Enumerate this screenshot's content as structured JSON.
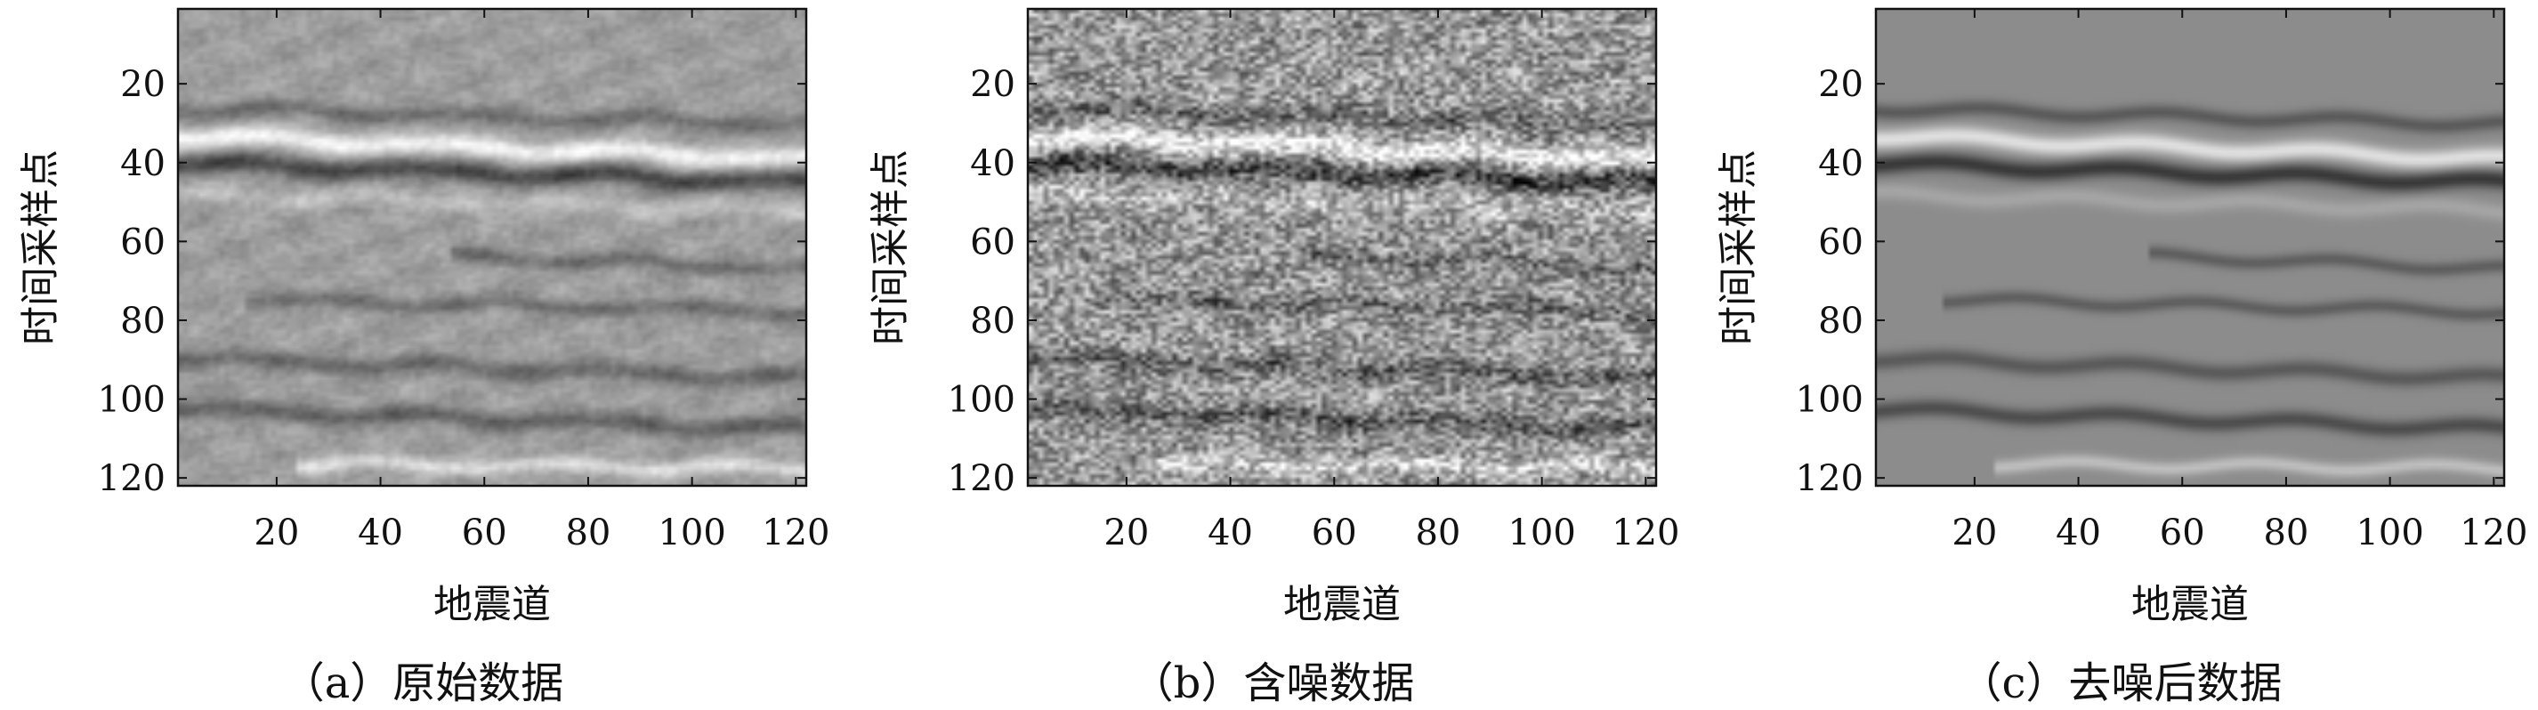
{
  "chart_data": [
    {
      "type": "heatmap",
      "panel": "a",
      "caption": "（a）原始数据",
      "xlabel": "地震道",
      "ylabel": "时间采样点",
      "xticks": [
        20,
        40,
        60,
        80,
        100,
        120
      ],
      "yticks": [
        20,
        40,
        60,
        80,
        100,
        120
      ],
      "xlim": [
        1,
        122
      ],
      "ylim": [
        1,
        122
      ],
      "y_reversed": true,
      "colormap": "gray",
      "noise_level": 0.0,
      "texture_level": 0.35,
      "background_level": 0.62,
      "events": [
        {
          "x0": 1,
          "y0": 26,
          "x1": 122,
          "y1": 30,
          "amp": -0.55,
          "w": 2.2
        },
        {
          "x0": 1,
          "y0": 33,
          "x1": 122,
          "y1": 39,
          "amp": 1.0,
          "w": 2.6
        },
        {
          "x0": 1,
          "y0": 40,
          "x1": 122,
          "y1": 45,
          "amp": -1.0,
          "w": 2.6
        },
        {
          "x0": 1,
          "y0": 48,
          "x1": 122,
          "y1": 52,
          "amp": 0.35,
          "w": 2.4
        },
        {
          "x0": 60,
          "y0": 64,
          "x1": 122,
          "y1": 67,
          "amp": -0.55,
          "w": 2.0
        },
        {
          "x0": 20,
          "y0": 75,
          "x1": 122,
          "y1": 78,
          "amp": -0.55,
          "w": 2.0
        },
        {
          "x0": 1,
          "y0": 90,
          "x1": 122,
          "y1": 95,
          "amp": -0.6,
          "w": 2.4
        },
        {
          "x0": 1,
          "y0": 103,
          "x1": 122,
          "y1": 108,
          "amp": -0.7,
          "w": 2.4
        },
        {
          "x0": 30,
          "y0": 117,
          "x1": 122,
          "y1": 118,
          "amp": 0.7,
          "w": 2.0
        }
      ]
    },
    {
      "type": "heatmap",
      "panel": "b",
      "caption": "（b）含噪数据",
      "xlabel": "地震道",
      "ylabel": "时间采样点",
      "xticks": [
        20,
        40,
        60,
        80,
        100,
        120
      ],
      "yticks": [
        20,
        40,
        60,
        80,
        100,
        120
      ],
      "xlim": [
        1,
        122
      ],
      "ylim": [
        1,
        122
      ],
      "y_reversed": true,
      "colormap": "gray",
      "noise_level": 0.55,
      "texture_level": 0.35,
      "background_level": 0.6,
      "events": [
        {
          "x0": 1,
          "y0": 26,
          "x1": 122,
          "y1": 30,
          "amp": -0.55,
          "w": 2.2
        },
        {
          "x0": 1,
          "y0": 33,
          "x1": 122,
          "y1": 39,
          "amp": 1.0,
          "w": 2.6
        },
        {
          "x0": 1,
          "y0": 40,
          "x1": 122,
          "y1": 45,
          "amp": -1.0,
          "w": 2.6
        },
        {
          "x0": 1,
          "y0": 48,
          "x1": 122,
          "y1": 52,
          "amp": 0.35,
          "w": 2.4
        },
        {
          "x0": 60,
          "y0": 64,
          "x1": 122,
          "y1": 67,
          "amp": -0.55,
          "w": 2.0
        },
        {
          "x0": 20,
          "y0": 75,
          "x1": 122,
          "y1": 78,
          "amp": -0.55,
          "w": 2.0
        },
        {
          "x0": 1,
          "y0": 90,
          "x1": 122,
          "y1": 95,
          "amp": -0.6,
          "w": 2.4
        },
        {
          "x0": 1,
          "y0": 103,
          "x1": 122,
          "y1": 108,
          "amp": -0.7,
          "w": 2.4
        },
        {
          "x0": 30,
          "y0": 117,
          "x1": 122,
          "y1": 118,
          "amp": 0.7,
          "w": 2.0
        }
      ]
    },
    {
      "type": "heatmap",
      "panel": "c",
      "caption": "（c）去噪后数据",
      "xlabel": "地震道",
      "ylabel": "时间采样点",
      "xticks": [
        20,
        40,
        60,
        80,
        100,
        120
      ],
      "yticks": [
        20,
        40,
        60,
        80,
        100,
        120
      ],
      "xlim": [
        1,
        122
      ],
      "ylim": [
        1,
        122
      ],
      "y_reversed": true,
      "colormap": "gray",
      "noise_level": 0.0,
      "texture_level": 0.0,
      "background_level": 0.55,
      "events": [
        {
          "x0": 1,
          "y0": 26,
          "x1": 122,
          "y1": 30,
          "amp": -0.6,
          "w": 2.0
        },
        {
          "x0": 1,
          "y0": 33,
          "x1": 122,
          "y1": 39,
          "amp": 1.0,
          "w": 2.4
        },
        {
          "x0": 1,
          "y0": 40,
          "x1": 122,
          "y1": 45,
          "amp": -1.0,
          "w": 2.4
        },
        {
          "x0": 1,
          "y0": 48,
          "x1": 122,
          "y1": 52,
          "amp": 0.3,
          "w": 2.2
        },
        {
          "x0": 60,
          "y0": 64,
          "x1": 122,
          "y1": 67,
          "amp": -0.55,
          "w": 1.8
        },
        {
          "x0": 20,
          "y0": 75,
          "x1": 122,
          "y1": 78,
          "amp": -0.55,
          "w": 1.8
        },
        {
          "x0": 1,
          "y0": 90,
          "x1": 122,
          "y1": 95,
          "amp": -0.6,
          "w": 2.2
        },
        {
          "x0": 1,
          "y0": 103,
          "x1": 122,
          "y1": 108,
          "amp": -0.75,
          "w": 2.2
        },
        {
          "x0": 30,
          "y0": 117,
          "x1": 122,
          "y1": 118,
          "amp": 0.6,
          "w": 1.8
        }
      ]
    }
  ]
}
